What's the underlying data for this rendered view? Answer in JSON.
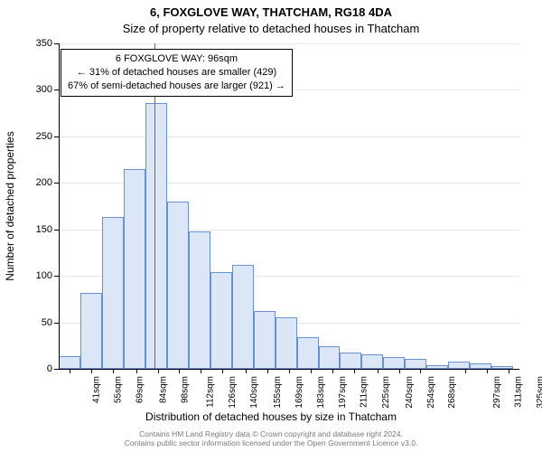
{
  "title_line1": "6, FOXGLOVE WAY, THATCHAM, RG18 4DA",
  "title_line2": "Size of property relative to detached houses in Thatcham",
  "y_axis_label": "Number of detached properties",
  "x_axis_label": "Distribution of detached houses by size in Thatcham",
  "chart": {
    "type": "histogram",
    "bar_fill": "#dbe6f7",
    "bar_stroke": "#6a8fd4",
    "grid_color": "#e6e6e6",
    "marker_color": "#d93a3a",
    "background_color": "#ffffff",
    "text_color": "#000000",
    "title_fontsize": 13,
    "axis_label_fontsize": 12,
    "tick_fontsize": 11,
    "y": {
      "min": 0,
      "max": 350,
      "step": 50,
      "ticks": [
        0,
        50,
        100,
        150,
        200,
        250,
        300,
        350
      ]
    },
    "x": {
      "min": 34,
      "max": 332,
      "bin_width_sqm_approx": 14,
      "tick_labels_sqm": [
        41,
        55,
        69,
        84,
        98,
        112,
        126,
        140,
        155,
        169,
        183,
        197,
        211,
        225,
        240,
        254,
        268,
        297,
        311,
        325
      ],
      "bin_edges_sqm": [
        34,
        48,
        62,
        76,
        90,
        104,
        118,
        132,
        146,
        160,
        174,
        188,
        202,
        216,
        230,
        244,
        258,
        272,
        286,
        300,
        314,
        328
      ]
    },
    "bars_counts": [
      14,
      82,
      163,
      215,
      286,
      180,
      148,
      104,
      112,
      62,
      55,
      34,
      24,
      18,
      16,
      13,
      11,
      4,
      8,
      6,
      3
    ],
    "marker_value_sqm": 96,
    "marker_line_width": 1.5
  },
  "annotation": {
    "line1": "6 FOXGLOVE WAY: 96sqm",
    "line2": "← 31% of detached houses are smaller (429)",
    "line3": "67% of semi-detached houses are larger (921) →",
    "border_color": "#000000",
    "background_color": "#ffffff",
    "fontsize": 11
  },
  "footer": {
    "line1": "Contains HM Land Registry data © Crown copyright and database right 2024.",
    "line2": "Contains public sector information licensed under the Open Government Licence v3.0.",
    "color": "#7a7a7a",
    "fontsize": 8.5
  }
}
